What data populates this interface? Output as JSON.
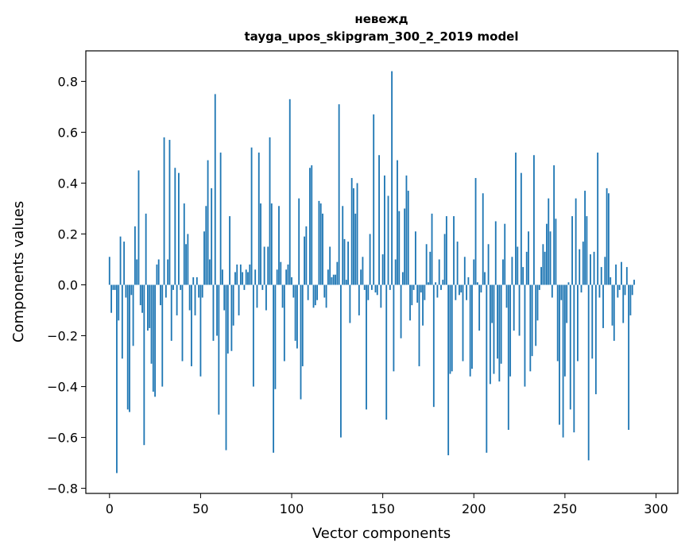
{
  "chart_data": {
    "type": "bar",
    "title": "невежд",
    "subtitle": "tayga_upos_skipgram_300_2_2019 model",
    "xlabel": "Vector components",
    "ylabel": "Components values",
    "xlim": [
      -13,
      312
    ],
    "ylim": [
      -0.82,
      0.92
    ],
    "x_ticks": [
      0,
      50,
      100,
      150,
      200,
      250,
      300
    ],
    "x_tick_labels": [
      "0",
      "50",
      "100",
      "150",
      "200",
      "250",
      "300"
    ],
    "y_ticks": [
      -0.8,
      -0.6,
      -0.4,
      -0.2,
      0.0,
      0.2,
      0.4,
      0.6,
      0.8
    ],
    "y_tick_labels": [
      "−0.8",
      "−0.6",
      "−0.4",
      "−0.2",
      "0.0",
      "0.2",
      "0.4",
      "0.6",
      "0.8"
    ],
    "bar_color": "#1f77b4",
    "grid": false,
    "values": [
      0.11,
      -0.11,
      -0.02,
      -0.02,
      -0.74,
      -0.14,
      0.19,
      -0.29,
      0.17,
      -0.05,
      -0.49,
      -0.5,
      -0.04,
      -0.24,
      0.23,
      0.1,
      0.45,
      -0.08,
      -0.11,
      -0.63,
      0.28,
      -0.18,
      -0.17,
      -0.31,
      -0.42,
      -0.44,
      0.08,
      0.1,
      -0.08,
      -0.4,
      0.58,
      -0.05,
      0.1,
      0.57,
      -0.22,
      -0.02,
      0.46,
      -0.12,
      0.44,
      -0.02,
      -0.3,
      0.32,
      0.16,
      0.2,
      -0.1,
      -0.32,
      0.03,
      -0.12,
      0.03,
      -0.05,
      -0.36,
      -0.05,
      0.21,
      0.31,
      0.49,
      0.1,
      0.38,
      -0.22,
      0.75,
      -0.2,
      -0.51,
      0.52,
      0.06,
      -0.1,
      -0.65,
      -0.27,
      0.27,
      -0.26,
      -0.16,
      0.05,
      0.08,
      -0.12,
      0.08,
      0.05,
      -0.02,
      0.06,
      0.05,
      0.08,
      0.54,
      -0.4,
      0.06,
      -0.09,
      0.52,
      0.32,
      -0.02,
      0.15,
      -0.1,
      0.15,
      0.58,
      0.32,
      -0.66,
      -0.41,
      0.06,
      0.31,
      0.09,
      -0.09,
      -0.3,
      0.06,
      0.08,
      0.73,
      0.03,
      -0.05,
      -0.22,
      -0.25,
      0.34,
      -0.45,
      -0.32,
      0.19,
      0.23,
      -0.06,
      0.46,
      0.47,
      -0.09,
      -0.08,
      -0.06,
      0.33,
      0.32,
      0.28,
      -0.05,
      -0.09,
      0.06,
      0.15,
      0.03,
      0.04,
      0.04,
      0.09,
      0.71,
      -0.6,
      0.31,
      0.18,
      0.02,
      0.17,
      -0.15,
      0.42,
      0.38,
      0.28,
      0.4,
      -0.12,
      0.06,
      0.11,
      -0.02,
      -0.49,
      -0.06,
      0.2,
      -0.02,
      0.67,
      -0.03,
      -0.04,
      0.51,
      -0.09,
      0.12,
      0.43,
      -0.53,
      0.35,
      -0.02,
      0.84,
      -0.34,
      0.1,
      0.49,
      0.29,
      -0.21,
      0.05,
      0.3,
      0.43,
      0.37,
      -0.14,
      -0.08,
      -0.02,
      0.21,
      -0.07,
      -0.32,
      -0.03,
      -0.16,
      -0.06,
      0.16,
      0.01,
      0.13,
      0.28,
      -0.48,
      0.01,
      -0.05,
      0.1,
      -0.02,
      0.02,
      0.2,
      0.27,
      -0.67,
      -0.35,
      -0.34,
      0.27,
      -0.06,
      0.17,
      -0.04,
      -0.03,
      -0.3,
      0.11,
      -0.06,
      0.03,
      -0.36,
      -0.33,
      0.1,
      0.42,
      0.01,
      -0.18,
      -0.03,
      0.36,
      0.05,
      -0.66,
      0.16,
      -0.39,
      -0.15,
      -0.35,
      0.25,
      -0.29,
      -0.38,
      -0.31,
      0.1,
      0.24,
      -0.09,
      -0.57,
      -0.36,
      0.11,
      -0.18,
      0.52,
      0.15,
      -0.2,
      0.44,
      0.07,
      -0.4,
      0.13,
      0.21,
      -0.34,
      -0.28,
      0.51,
      -0.24,
      -0.14,
      -0.02,
      0.07,
      0.16,
      0.13,
      0.24,
      0.34,
      0.21,
      -0.05,
      0.47,
      0.26,
      -0.3,
      -0.55,
      -0.06,
      -0.6,
      -0.36,
      -0.15,
      0.01,
      -0.49,
      0.27,
      -0.58,
      0.34,
      -0.3,
      0.14,
      -0.03,
      0.17,
      0.37,
      0.27,
      -0.69,
      0.12,
      -0.29,
      0.13,
      -0.43,
      0.52,
      -0.05,
      0.07,
      -0.17,
      0.11,
      0.38,
      0.36,
      0.03,
      -0.16,
      -0.22,
      0.08,
      -0.05,
      -0.02,
      0.09,
      -0.15,
      -0.04,
      0.07,
      -0.57,
      -0.12,
      -0.04,
      0.02
    ]
  }
}
